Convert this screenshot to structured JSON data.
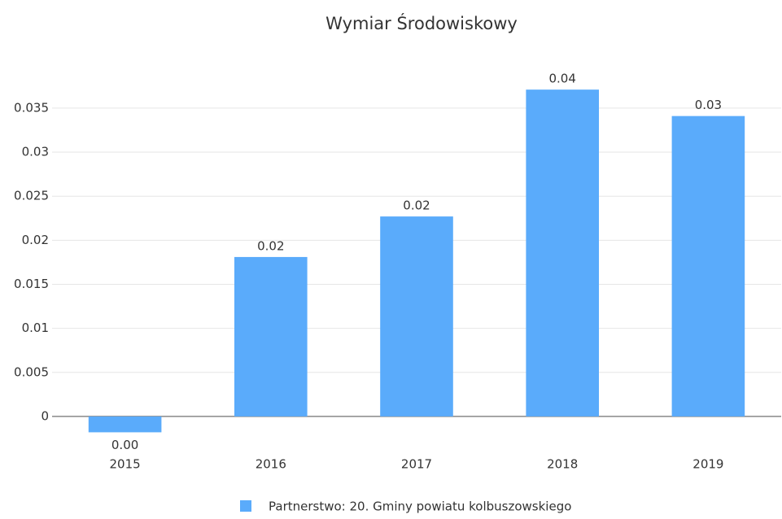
{
  "chart_data": {
    "type": "bar",
    "title": "Wymiar Środowiskowy",
    "categories": [
      "2015",
      "2016",
      "2017",
      "2018",
      "2019"
    ],
    "series": [
      {
        "name": "Partnerstwo: 20. Gminy powiatu kolbuszowskiego",
        "color": "#5aabfb",
        "values": [
          -0.0018,
          0.0181,
          0.0227,
          0.0371,
          0.0341
        ],
        "value_labels": [
          "0.00",
          "0.02",
          "0.02",
          "0.04",
          "0.03"
        ]
      }
    ],
    "ylim": [
      -0.0025,
      0.0385
    ],
    "yticks": [
      0,
      0.005,
      0.01,
      0.015,
      0.02,
      0.025,
      0.03,
      0.035
    ],
    "grid": true
  }
}
